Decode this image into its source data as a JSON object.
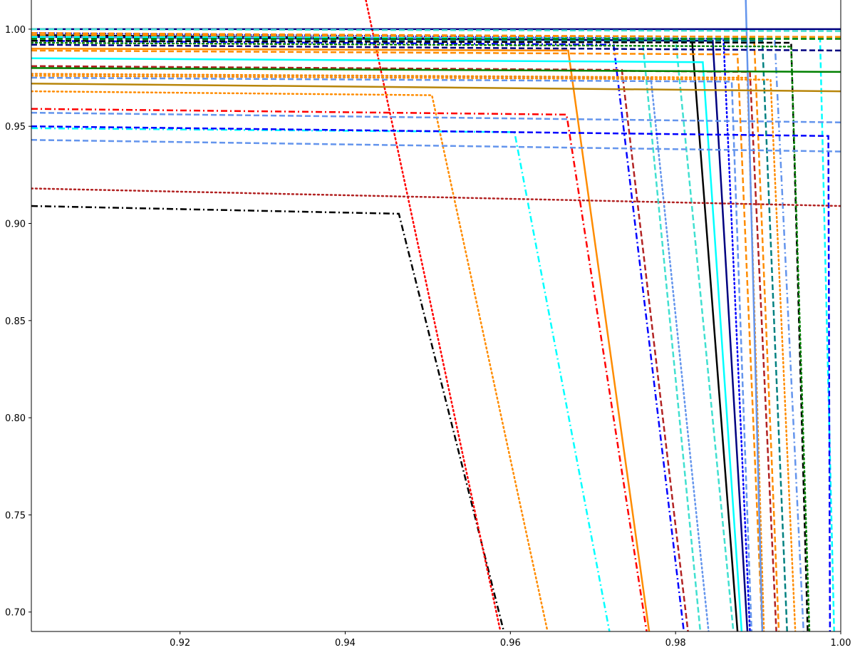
{
  "chart_data": {
    "type": "line",
    "title": "",
    "xlabel": "",
    "ylabel": "",
    "xlim": [
      0.902,
      1.0
    ],
    "ylim": [
      0.69,
      1.015
    ],
    "grid": false,
    "legend": "none",
    "xticks": [
      {
        "value": 0.92,
        "label": "0.92"
      },
      {
        "value": 0.94,
        "label": "0.94"
      },
      {
        "value": 0.96,
        "label": "0.96"
      },
      {
        "value": 0.98,
        "label": "0.98"
      },
      {
        "value": 1.0,
        "label": "1.00"
      }
    ],
    "yticks": [
      {
        "value": 0.7,
        "label": "0.70"
      },
      {
        "value": 0.75,
        "label": "0.75"
      },
      {
        "value": 0.8,
        "label": "0.80"
      },
      {
        "value": 0.85,
        "label": "0.85"
      },
      {
        "value": 0.9,
        "label": "0.90"
      },
      {
        "value": 0.95,
        "label": "0.95"
      },
      {
        "value": 1.0,
        "label": "1.00"
      }
    ],
    "series": [
      {
        "color": "#000000",
        "style": "dashdot",
        "x": [
          0.902,
          0.9465,
          0.9592
        ],
        "y": [
          0.909,
          0.905,
          0.69
        ]
      },
      {
        "color": "#ff0000",
        "style": "dotted",
        "x": [
          0.9425,
          0.9588
        ],
        "y": [
          1.015,
          0.69
        ]
      },
      {
        "color": "#ff8c00",
        "style": "dotted",
        "x": [
          0.902,
          0.9505,
          0.9645
        ],
        "y": [
          0.968,
          0.966,
          0.69
        ]
      },
      {
        "color": "#00ffff",
        "style": "dashdot",
        "x": [
          0.902,
          0.9605,
          0.972
        ],
        "y": [
          0.949,
          0.947,
          0.69
        ]
      },
      {
        "color": "#ff0000",
        "style": "dashdot",
        "x": [
          0.902,
          0.9668,
          0.9765
        ],
        "y": [
          0.959,
          0.956,
          0.69
        ]
      },
      {
        "color": "#ff8c00",
        "style": "solid",
        "x": [
          0.902,
          0.967,
          0.9768
        ],
        "y": [
          0.99,
          0.989,
          0.69
        ]
      },
      {
        "color": "#0000ff",
        "style": "dashdot",
        "x": [
          0.902,
          0.9725,
          0.981
        ],
        "y": [
          0.994,
          0.992,
          0.69
        ]
      },
      {
        "color": "#b22222",
        "style": "dashed",
        "x": [
          0.902,
          0.9735,
          0.9815
        ],
        "y": [
          0.981,
          0.979,
          0.69
        ]
      },
      {
        "color": "#40e0d0",
        "style": "dashed",
        "x": [
          0.902,
          0.976,
          0.983
        ],
        "y": [
          0.996,
          0.994,
          0.69
        ]
      },
      {
        "color": "#6495ed",
        "style": "dotted",
        "x": [
          0.902,
          0.977,
          0.984
        ],
        "y": [
          0.977,
          0.975,
          0.69
        ]
      },
      {
        "color": "#40e0d0",
        "style": "dashed",
        "x": [
          0.902,
          0.98,
          0.987
        ],
        "y": [
          0.996,
          0.995,
          0.69
        ]
      },
      {
        "color": "#000000",
        "style": "solid",
        "x": [
          0.902,
          0.982,
          0.9875
        ],
        "y": [
          0.997,
          0.994,
          0.69
        ]
      },
      {
        "color": "#00ffff",
        "style": "solid",
        "x": [
          0.902,
          0.9833,
          0.988
        ],
        "y": [
          0.985,
          0.983,
          0.69
        ]
      },
      {
        "color": "#000080",
        "style": "solid",
        "x": [
          0.902,
          0.9845,
          0.9887
        ],
        "y": [
          0.996,
          0.994,
          0.69
        ]
      },
      {
        "color": "#0000ff",
        "style": "dotted",
        "x": [
          0.902,
          0.9858,
          0.989
        ],
        "y": [
          0.998,
          0.995,
          0.69
        ]
      },
      {
        "color": "#6495ed",
        "style": "dashed",
        "x": [
          0.902,
          0.9868,
          0.9892
        ],
        "y": [
          0.975,
          0.973,
          0.69
        ]
      },
      {
        "color": "#ff8c00",
        "style": "dashed",
        "x": [
          0.902,
          0.9875,
          0.9905
        ],
        "y": [
          0.989,
          0.987,
          0.69
        ]
      },
      {
        "color": "#ff8c00",
        "style": "dotted",
        "x": [
          0.902,
          0.9887,
          0.9907
        ],
        "y": [
          0.977,
          0.975,
          0.69
        ]
      },
      {
        "color": "#6495ed",
        "style": "solid",
        "x": [
          0.9885,
          0.9905
        ],
        "y": [
          1.015,
          0.69
        ]
      },
      {
        "color": "#b22222",
        "style": "dashed",
        "x": [
          0.902,
          0.989,
          0.9922
        ],
        "y": [
          0.981,
          0.978,
          0.69
        ]
      },
      {
        "color": "#ff8c00",
        "style": "dashed",
        "x": [
          0.902,
          0.9895,
          0.9925
        ],
        "y": [
          0.998,
          0.996,
          0.69
        ]
      },
      {
        "color": "#008080",
        "style": "dashed",
        "x": [
          0.902,
          0.9905,
          0.9935
        ],
        "y": [
          0.995,
          0.994,
          0.69
        ]
      },
      {
        "color": "#ff8c00",
        "style": "dotted",
        "x": [
          0.902,
          0.9915,
          0.9945
        ],
        "y": [
          0.976,
          0.974,
          0.69
        ]
      },
      {
        "color": "#6495ed",
        "style": "dashdot",
        "x": [
          0.902,
          0.992,
          0.9955
        ],
        "y": [
          0.996,
          0.995,
          0.69
        ]
      },
      {
        "color": "#000000",
        "style": "dashed",
        "x": [
          0.902,
          0.994,
          0.996
        ],
        "y": [
          0.994,
          0.993,
          0.69
        ]
      },
      {
        "color": "#008000",
        "style": "dotted",
        "x": [
          0.902,
          0.994,
          0.9962
        ],
        "y": [
          0.993,
          0.991,
          0.69
        ]
      },
      {
        "color": "#00ffff",
        "style": "dashed",
        "x": [
          0.902,
          0.9975,
          0.9992
        ],
        "y": [
          0.996,
          0.995,
          0.69
        ]
      },
      {
        "color": "#0000ff",
        "style": "dashed",
        "x": [
          0.902,
          0.9985,
          0.9987
        ],
        "y": [
          0.95,
          0.945,
          0.69
        ]
      },
      {
        "color": "#000080",
        "style": "solid",
        "x": [
          0.902,
          1.0
        ],
        "y": [
          1.0,
          1.0
        ]
      },
      {
        "color": "#000080",
        "style": "dashed",
        "x": [
          0.902,
          1.0
        ],
        "y": [
          0.992,
          0.989
        ]
      },
      {
        "color": "#008000",
        "style": "solid",
        "x": [
          0.902,
          1.0
        ],
        "y": [
          0.98,
          0.978
        ]
      },
      {
        "color": "#ff8c00",
        "style": "dashed",
        "x": [
          0.902,
          1.0
        ],
        "y": [
          0.997,
          0.996
        ]
      },
      {
        "color": "#b8860b",
        "style": "solid",
        "x": [
          0.902,
          1.0
        ],
        "y": [
          0.972,
          0.968
        ]
      },
      {
        "color": "#6495ed",
        "style": "dashed",
        "x": [
          0.902,
          1.0
        ],
        "y": [
          0.957,
          0.952
        ]
      },
      {
        "color": "#6495ed",
        "style": "dashed",
        "x": [
          0.902,
          1.0
        ],
        "y": [
          0.943,
          0.937
        ]
      },
      {
        "color": "#b22222",
        "style": "dotted",
        "x": [
          0.902,
          1.0
        ],
        "y": [
          0.918,
          0.909
        ]
      },
      {
        "color": "#40e0d0",
        "style": "dashed",
        "x": [
          0.902,
          1.0
        ],
        "y": [
          1.0,
          0.999
        ]
      },
      {
        "color": "#008000",
        "style": "dashed",
        "x": [
          0.902,
          1.0
        ],
        "y": [
          0.995,
          0.995
        ]
      }
    ]
  }
}
